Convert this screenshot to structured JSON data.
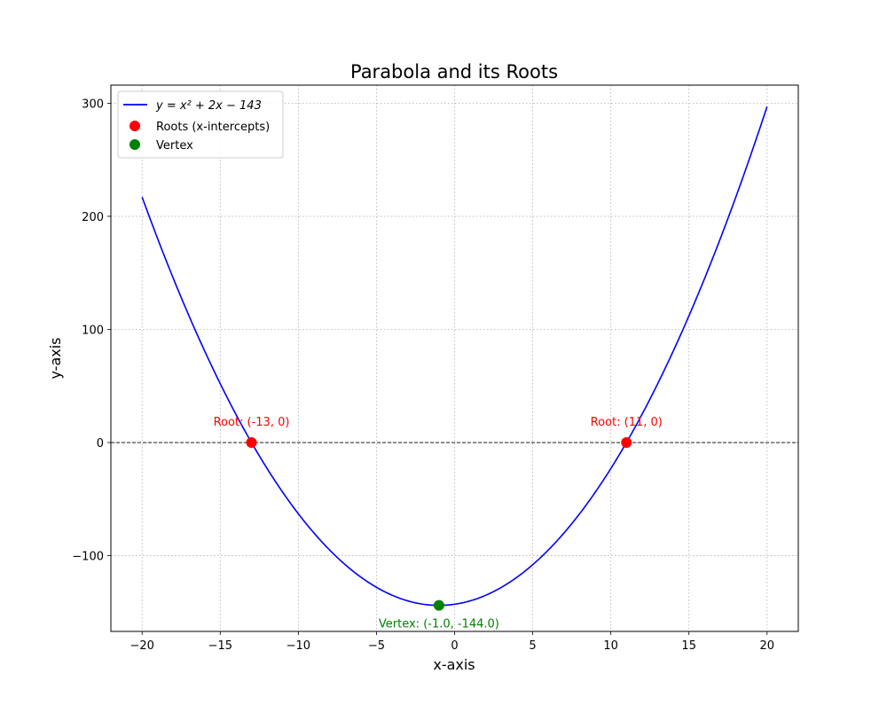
{
  "chart_data": {
    "type": "line",
    "title": "Parabola and its Roots",
    "xlabel": "x-axis",
    "ylabel": "y-axis",
    "xlim": [
      -22,
      22
    ],
    "ylim": [
      -167,
      316
    ],
    "xticks": [
      -20,
      -15,
      -10,
      -5,
      0,
      5,
      10,
      15,
      20
    ],
    "yticks": [
      -100,
      0,
      100,
      200,
      300
    ],
    "xtick_labels": [
      "−20",
      "−15",
      "−10",
      "−5",
      "0",
      "5",
      "10",
      "15",
      "20"
    ],
    "ytick_labels": [
      "−100",
      "0",
      "100",
      "200",
      "300"
    ],
    "grid": true,
    "legend_position": "top-left",
    "curve": {
      "name": "y = x² + 2x − 143",
      "x_range": [
        -20,
        20
      ],
      "coefficients": {
        "a": 1,
        "b": 2,
        "c": -143
      },
      "color": "#0000ff"
    },
    "reference_line": {
      "y": 0,
      "color": "#000000",
      "style": "dashed"
    },
    "roots": {
      "name": "Roots (x-intercepts)",
      "color": "#ff0000",
      "points": [
        {
          "x": -13,
          "y": 0,
          "label": "Root: (-13, 0)"
        },
        {
          "x": 11,
          "y": 0,
          "label": "Root: (11, 0)"
        }
      ]
    },
    "vertex": {
      "name": "Vertex",
      "color": "#008000",
      "point": {
        "x": -1,
        "y": -144,
        "label": "Vertex: (-1.0, -144.0)"
      }
    }
  }
}
